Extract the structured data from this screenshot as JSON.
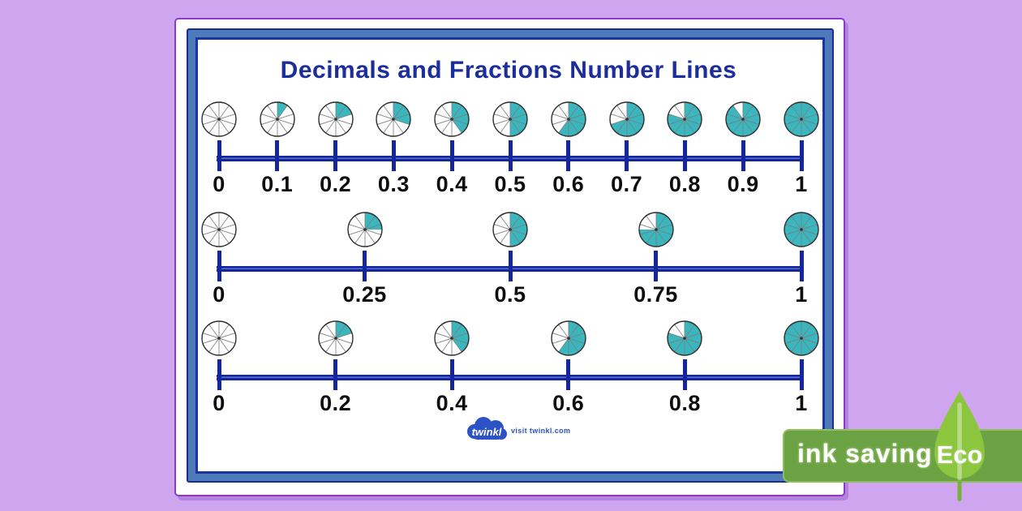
{
  "poster": {
    "title": "Decimals and Fractions Number Lines",
    "colors": {
      "background": "#d0a5f0",
      "card_border_purple": "#8a3cc8",
      "frame_steel_blue": "#4d7ab8",
      "frame_navy": "#1a35a2",
      "title_navy": "#1c2e9c",
      "number_line_navy": "#15259c",
      "pie_fill_teal": "#3ab7be",
      "pie_spoke_gray": "#7d7d7d",
      "pie_outline": "#2f2f2f",
      "label_black": "#0d0d0d"
    }
  },
  "chart_data": [
    {
      "type": "number_line",
      "name": "tenths",
      "xlim": [
        0,
        1
      ],
      "labels": [
        "0",
        "0.1",
        "0.2",
        "0.3",
        "0.4",
        "0.5",
        "0.6",
        "0.7",
        "0.8",
        "0.9",
        "1"
      ],
      "values": [
        0,
        0.1,
        0.2,
        0.3,
        0.4,
        0.5,
        0.6,
        0.7,
        0.8,
        0.9,
        1
      ],
      "pie_slices": 10,
      "note": "each tick shown as a circle of 10 slices with a fraction equal to the value shaded teal"
    },
    {
      "type": "number_line",
      "name": "quarters",
      "xlim": [
        0,
        1
      ],
      "labels": [
        "0",
        "0.25",
        "0.5",
        "0.75",
        "1"
      ],
      "values": [
        0,
        0.25,
        0.5,
        0.75,
        1
      ],
      "pie_slices": 10,
      "note": "pies shaded 0, 1/4, 1/2, 3/4 and whole"
    },
    {
      "type": "number_line",
      "name": "fifths",
      "xlim": [
        0,
        1
      ],
      "labels": [
        "0",
        "0.2",
        "0.4",
        "0.6",
        "0.8",
        "1"
      ],
      "values": [
        0,
        0.2,
        0.4,
        0.6,
        0.8,
        1
      ],
      "pie_slices": 10,
      "note": "pies shaded in fifths"
    }
  ],
  "footer": {
    "logo_text": "twinkl",
    "visit_text": "visit twinkl.com",
    "logo_blue": "#2d52c5"
  },
  "eco_badge": {
    "label": "ink saving",
    "eco_text": "Eco",
    "banner_green": "#6ba244",
    "leaf_green": "#8cc63f"
  }
}
